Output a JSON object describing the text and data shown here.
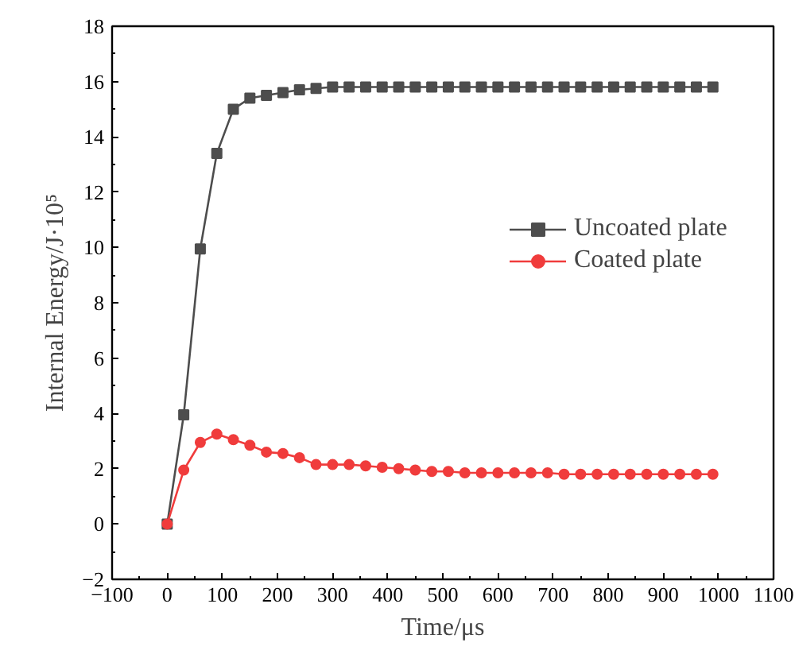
{
  "chart_data": {
    "type": "line",
    "xlabel": "Time/μs",
    "ylabel": "Internal Energy/J·10⁵",
    "x": [
      0,
      30,
      60,
      90,
      120,
      150,
      180,
      210,
      240,
      270,
      300,
      330,
      360,
      390,
      420,
      450,
      480,
      510,
      540,
      570,
      600,
      630,
      660,
      690,
      720,
      750,
      780,
      810,
      840,
      870,
      900,
      930,
      960,
      990
    ],
    "series": [
      {
        "name": "Uncoated plate",
        "color": "#4d4d4d",
        "marker": "square",
        "values": [
          0,
          3.95,
          9.95,
          13.4,
          15.0,
          15.4,
          15.5,
          15.6,
          15.7,
          15.75,
          15.8,
          15.8,
          15.8,
          15.8,
          15.8,
          15.8,
          15.8,
          15.8,
          15.8,
          15.8,
          15.8,
          15.8,
          15.8,
          15.8,
          15.8,
          15.8,
          15.8,
          15.8,
          15.8,
          15.8,
          15.8,
          15.8,
          15.8,
          15.8
        ]
      },
      {
        "name": "Coated plate",
        "color": "#f03c3c",
        "marker": "circle",
        "values": [
          0,
          1.95,
          2.95,
          3.25,
          3.05,
          2.85,
          2.6,
          2.55,
          2.4,
          2.15,
          2.15,
          2.15,
          2.1,
          2.05,
          2.0,
          1.95,
          1.9,
          1.9,
          1.85,
          1.85,
          1.85,
          1.85,
          1.85,
          1.85,
          1.8,
          1.8,
          1.8,
          1.8,
          1.8,
          1.8,
          1.8,
          1.8,
          1.8,
          1.8
        ]
      }
    ],
    "xlim": [
      -100,
      1100
    ],
    "xticks": [
      -100,
      0,
      100,
      200,
      300,
      400,
      500,
      600,
      700,
      800,
      900,
      1000,
      1100
    ],
    "ylim": [
      -2,
      18
    ],
    "yticks": [
      -2,
      0,
      2,
      4,
      6,
      8,
      10,
      12,
      14,
      16,
      18
    ],
    "grid": false,
    "legend": "right"
  }
}
